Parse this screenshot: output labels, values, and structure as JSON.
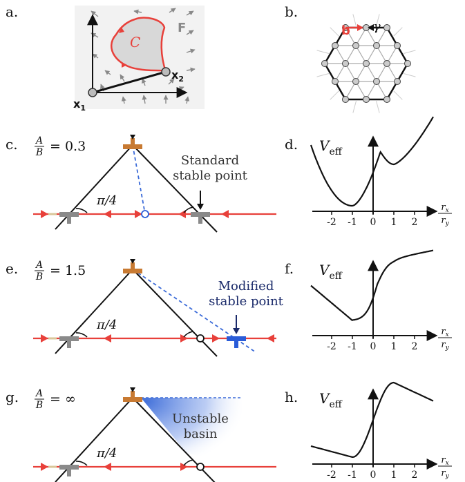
{
  "panels": {
    "a": {
      "label": "a.",
      "field": "F",
      "curve": "C",
      "x1": "x",
      "x1_sub": "1",
      "x2": "x",
      "x2_sub": "2"
    },
    "b": {
      "label": "b.",
      "burgers": "b",
      "gamma": "γ"
    },
    "c": {
      "label": "c.",
      "ratio_num": "A",
      "ratio_den": "B",
      "ratio_val": "= 0.3",
      "angle": "π/4",
      "annotation_line1": "Standard",
      "annotation_line2": "stable point"
    },
    "d": {
      "label": "d.",
      "ylabel": "V",
      "ylabel_sub": "eff"
    },
    "e": {
      "label": "e.",
      "ratio_num": "A",
      "ratio_den": "B",
      "ratio_val": "= 1.5",
      "angle": "π/4",
      "annotation_line1": "Modified",
      "annotation_line2": "stable point"
    },
    "f": {
      "label": "f.",
      "ylabel": "V",
      "ylabel_sub": "eff"
    },
    "g": {
      "label": "g.",
      "ratio_num": "A",
      "ratio_den": "B",
      "ratio_val": "= ∞",
      "angle": "π/4",
      "annotation_line1": "Unstable",
      "annotation_line2": "basin"
    },
    "h": {
      "label": "h.",
      "ylabel": "V",
      "ylabel_sub": "eff"
    }
  },
  "xaxis": {
    "label_num": "r",
    "label_num_sub": "x",
    "label_den": "r",
    "label_den_sub": "y",
    "ticks": [
      "-2",
      "-1",
      "0",
      "1",
      "2"
    ]
  },
  "colors": {
    "red": "#e8403a",
    "orange": "#c87a32",
    "gray": "#8a8a8a",
    "blue": "#2a5cd8",
    "navy": "#1a2a6a",
    "dashed": "#3a6ad8",
    "tan": "#d9c79a"
  }
}
